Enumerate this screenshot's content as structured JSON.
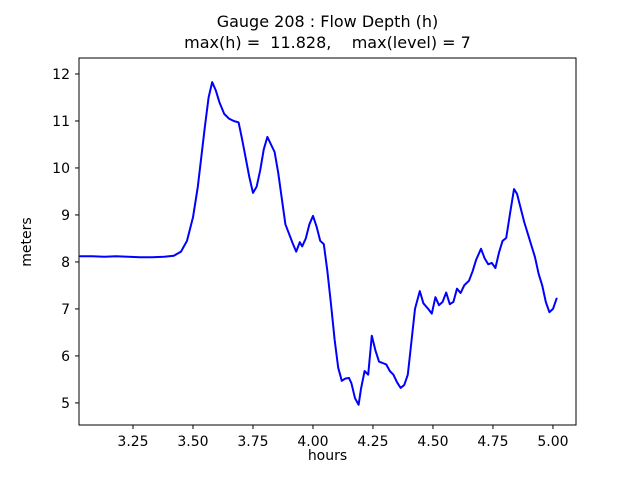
{
  "title": {
    "line1": "Gauge 208 : Flow Depth (h)",
    "line2": "max(h) =  11.828,    max(level) = 7"
  },
  "axes": {
    "xlabel": "hours",
    "ylabel": "meters",
    "x_ticks": [
      "3.25",
      "3.50",
      "3.75",
      "4.00",
      "4.25",
      "4.50",
      "4.75",
      "5.00"
    ],
    "y_ticks": [
      "5",
      "6",
      "7",
      "8",
      "9",
      "10",
      "11",
      "12"
    ]
  },
  "chart_data": {
    "type": "line",
    "title": "Gauge 208 : Flow Depth (h)",
    "subtitle": "max(h) =  11.828,    max(level) = 7",
    "xlabel": "hours",
    "ylabel": "meters",
    "xlim": [
      3.025,
      5.096
    ],
    "ylim": [
      4.53,
      12.34
    ],
    "x_tick_values": [
      3.25,
      3.5,
      3.75,
      4.0,
      4.25,
      4.5,
      4.75,
      5.0
    ],
    "y_tick_values": [
      5,
      6,
      7,
      8,
      9,
      10,
      11,
      12
    ],
    "grid": false,
    "legend": "none",
    "line_color": "#0000ff",
    "frame_color": "#000000",
    "max_h": 11.828,
    "max_level": 7,
    "series": [
      {
        "name": "flow-depth-h",
        "x": [
          3.03,
          3.08,
          3.13,
          3.18,
          3.23,
          3.28,
          3.33,
          3.38,
          3.42,
          3.45,
          3.475,
          3.5,
          3.52,
          3.535,
          3.55,
          3.565,
          3.58,
          3.595,
          3.61,
          3.63,
          3.65,
          3.67,
          3.69,
          3.705,
          3.72,
          3.735,
          3.75,
          3.765,
          3.78,
          3.795,
          3.81,
          3.825,
          3.84,
          3.855,
          3.87,
          3.885,
          3.9,
          3.915,
          3.93,
          3.945,
          3.955,
          3.97,
          3.985,
          4.0,
          4.015,
          4.03,
          4.045,
          4.06,
          4.075,
          4.09,
          4.105,
          4.12,
          4.135,
          4.15,
          4.16,
          4.175,
          4.19,
          4.2,
          4.215,
          4.23,
          4.245,
          4.26,
          4.275,
          4.29,
          4.305,
          4.32,
          4.335,
          4.35,
          4.365,
          4.38,
          4.395,
          4.41,
          4.425,
          4.445,
          4.46,
          4.48,
          4.495,
          4.51,
          4.525,
          4.54,
          4.555,
          4.57,
          4.585,
          4.6,
          4.615,
          4.63,
          4.65,
          4.665,
          4.68,
          4.7,
          4.715,
          4.73,
          4.745,
          4.76,
          4.775,
          4.79,
          4.805,
          4.82,
          4.8375,
          4.85,
          4.865,
          4.88,
          4.895,
          4.91,
          4.925,
          4.94,
          4.955,
          4.97,
          4.985,
          5.0,
          5.015
        ],
        "y": [
          8.12,
          8.12,
          8.11,
          8.12,
          8.11,
          8.1,
          8.1,
          8.11,
          8.13,
          8.22,
          8.45,
          8.95,
          9.6,
          10.25,
          10.9,
          11.5,
          11.828,
          11.65,
          11.4,
          11.15,
          11.05,
          11.0,
          10.97,
          10.6,
          10.2,
          9.8,
          9.47,
          9.6,
          9.95,
          10.4,
          10.66,
          10.5,
          10.34,
          9.9,
          9.35,
          8.8,
          8.6,
          8.4,
          8.22,
          8.42,
          8.33,
          8.5,
          8.8,
          8.98,
          8.75,
          8.45,
          8.38,
          7.8,
          7.1,
          6.35,
          5.75,
          5.47,
          5.52,
          5.53,
          5.42,
          5.1,
          4.96,
          5.3,
          5.68,
          5.6,
          6.43,
          6.12,
          5.88,
          5.85,
          5.82,
          5.68,
          5.6,
          5.44,
          5.32,
          5.38,
          5.6,
          6.3,
          7.0,
          7.38,
          7.12,
          7.0,
          6.9,
          7.25,
          7.08,
          7.15,
          7.35,
          7.1,
          7.15,
          7.43,
          7.34,
          7.5,
          7.6,
          7.8,
          8.05,
          8.28,
          8.08,
          7.95,
          7.98,
          7.87,
          8.2,
          8.45,
          8.51,
          9.0,
          9.55,
          9.45,
          9.15,
          8.85,
          8.6,
          8.35,
          8.1,
          7.75,
          7.5,
          7.15,
          6.93,
          7.0,
          7.22
        ]
      }
    ]
  }
}
